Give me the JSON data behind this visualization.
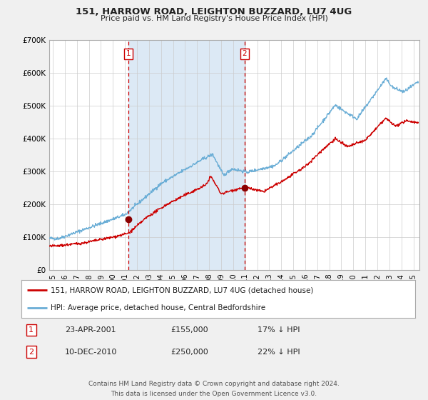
{
  "title": "151, HARROW ROAD, LEIGHTON BUZZARD, LU7 4UG",
  "subtitle": "Price paid vs. HM Land Registry's House Price Index (HPI)",
  "background_color": "#f0f0f0",
  "plot_bg_color": "#ffffff",
  "shaded_region_color": "#dce9f5",
  "ylim": [
    0,
    700000
  ],
  "yticks": [
    0,
    100000,
    200000,
    300000,
    400000,
    500000,
    600000,
    700000
  ],
  "ytick_labels": [
    "£0",
    "£100K",
    "£200K",
    "£300K",
    "£400K",
    "£500K",
    "£600K",
    "£700K"
  ],
  "xlim_start": 1994.7,
  "xlim_end": 2025.5,
  "xticks": [
    1995,
    1996,
    1997,
    1998,
    1999,
    2000,
    2001,
    2002,
    2003,
    2004,
    2005,
    2006,
    2007,
    2008,
    2009,
    2010,
    2011,
    2012,
    2013,
    2014,
    2015,
    2016,
    2017,
    2018,
    2019,
    2020,
    2021,
    2022,
    2023,
    2024,
    2025
  ],
  "hpi_color": "#6baed6",
  "price_color": "#cc0000",
  "marker_color": "#8b0000",
  "vline_color": "#cc0000",
  "vline1_x": 2001.31,
  "vline2_x": 2010.94,
  "sale1_x": 2001.31,
  "sale1_y": 155000,
  "sale2_x": 2010.94,
  "sale2_y": 250000,
  "legend_label_price": "151, HARROW ROAD, LEIGHTON BUZZARD, LU7 4UG (detached house)",
  "legend_label_hpi": "HPI: Average price, detached house, Central Bedfordshire",
  "table_rows": [
    {
      "num": "1",
      "date": "23-APR-2001",
      "price": "£155,000",
      "pct": "17% ↓ HPI"
    },
    {
      "num": "2",
      "date": "10-DEC-2010",
      "price": "£250,000",
      "pct": "22% ↓ HPI"
    }
  ],
  "footer1": "Contains HM Land Registry data © Crown copyright and database right 2024.",
  "footer2": "This data is licensed under the Open Government Licence v3.0.",
  "grid_color": "#cccccc"
}
